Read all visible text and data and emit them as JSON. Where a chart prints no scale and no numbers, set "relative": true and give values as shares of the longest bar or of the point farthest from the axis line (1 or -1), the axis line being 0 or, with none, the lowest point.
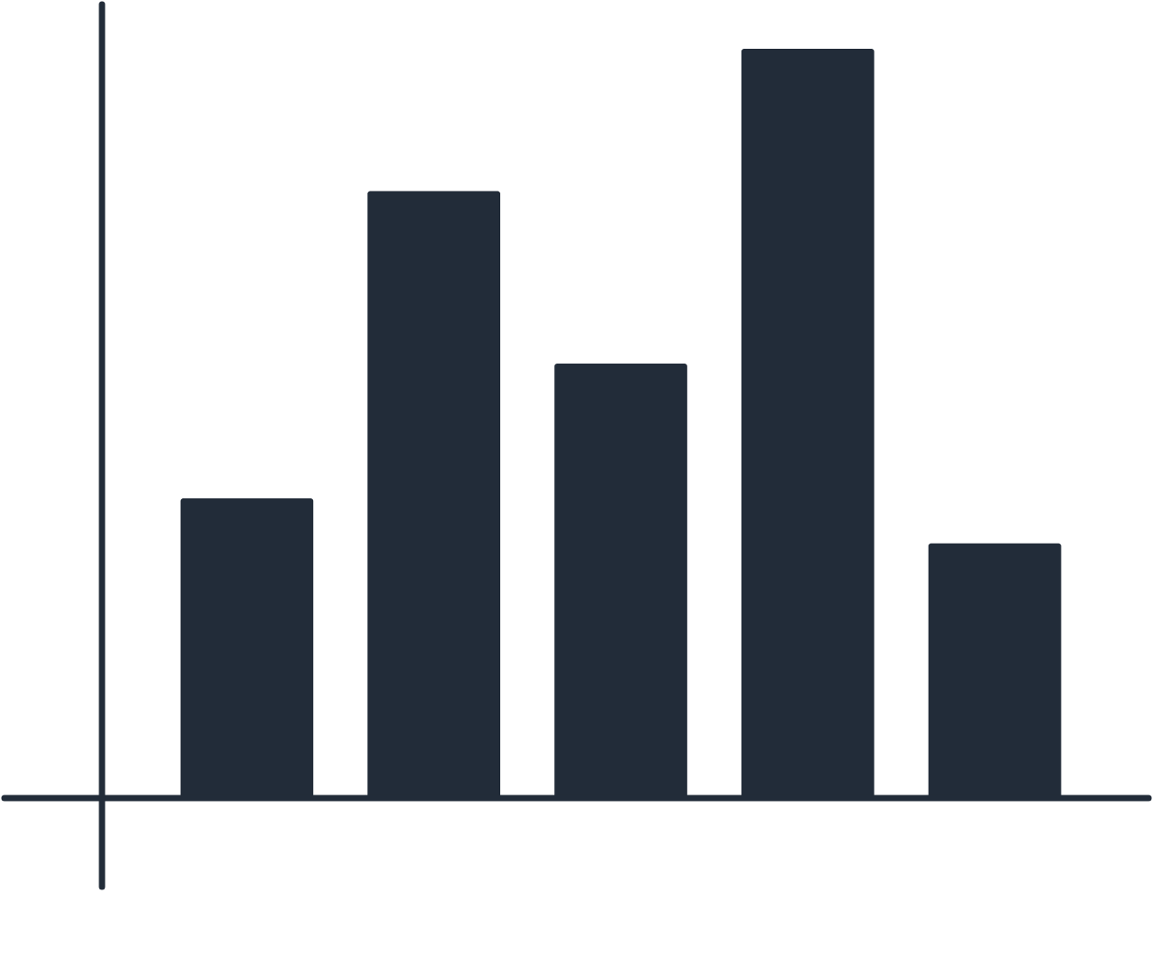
{
  "chart_data": {
    "type": "bar",
    "relative": true,
    "categories": [
      null,
      null,
      null,
      null,
      null
    ],
    "values": [
      0.4,
      0.81,
      0.58,
      1,
      0.34
    ],
    "color": "#222c39"
  }
}
